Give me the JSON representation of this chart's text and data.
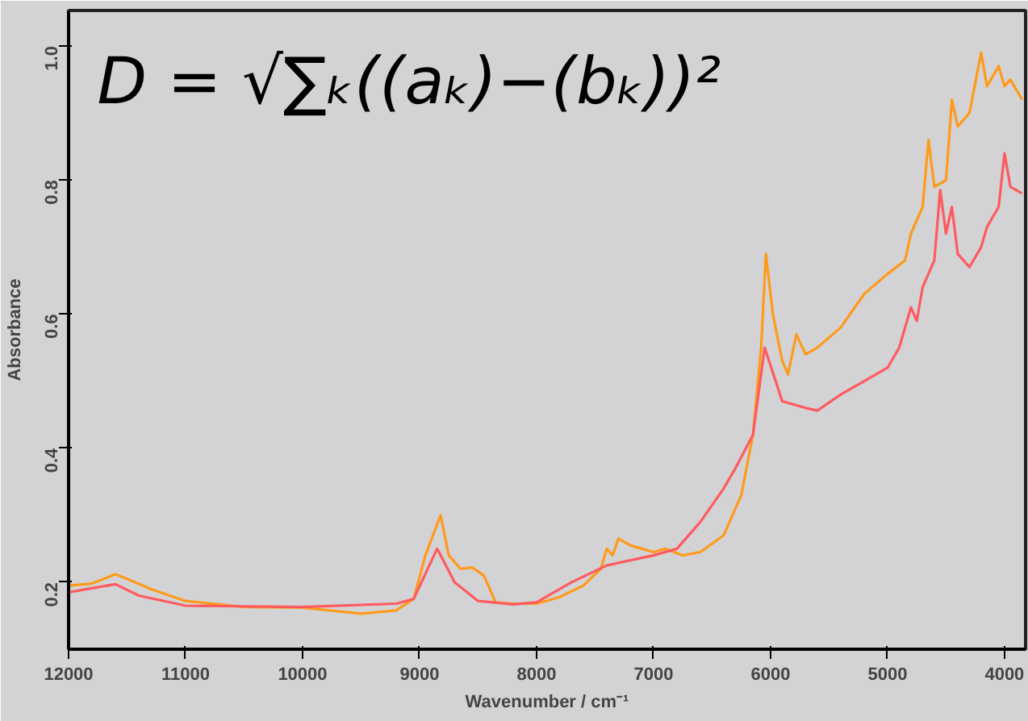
{
  "chart_data": {
    "type": "line",
    "xlabel": "Wavenumber / cm⁻¹",
    "ylabel": "Absorbance",
    "annotations": [
      "D = √∑ₖ((aₖ)−(bₖ))²"
    ],
    "xlim": [
      12000,
      3820
    ],
    "ylim": [
      0.1,
      1.053
    ],
    "xticks": [
      12000,
      11000,
      10000,
      9000,
      8000,
      7000,
      6000,
      5000,
      4000
    ],
    "yticks": [
      0.2,
      0.4,
      0.6,
      0.8,
      {
        "value": 1.0,
        "label": "1.0"
      }
    ],
    "grid": false,
    "marker": "none",
    "line_style": "solid",
    "series": [
      {
        "color": "#ff9a1a",
        "x": [
          12000,
          11800,
          11600,
          11500,
          11300,
          11000,
          10500,
          10000,
          9500,
          9200,
          9050,
          8950,
          8820,
          8750,
          8650,
          8550,
          8450,
          8350,
          8200,
          8000,
          7800,
          7600,
          7450,
          7400,
          7350,
          7300,
          7200,
          7100,
          7000,
          6900,
          6750,
          6600,
          6400,
          6250,
          6150,
          6080,
          6040,
          5980,
          5900,
          5850,
          5780,
          5700,
          5600,
          5400,
          5200,
          5000,
          4850,
          4800,
          4700,
          4650,
          4600,
          4500,
          4450,
          4400,
          4300,
          4200,
          4150,
          4050,
          4000,
          3950,
          3850
        ],
        "values": [
          0.195,
          0.198,
          0.212,
          0.205,
          0.19,
          0.172,
          0.163,
          0.162,
          0.153,
          0.158,
          0.175,
          0.24,
          0.3,
          0.24,
          0.22,
          0.222,
          0.21,
          0.17,
          0.168,
          0.168,
          0.178,
          0.195,
          0.22,
          0.25,
          0.24,
          0.265,
          0.255,
          0.25,
          0.245,
          0.25,
          0.24,
          0.245,
          0.27,
          0.33,
          0.42,
          0.55,
          0.69,
          0.6,
          0.53,
          0.51,
          0.57,
          0.54,
          0.55,
          0.58,
          0.63,
          0.66,
          0.68,
          0.72,
          0.76,
          0.86,
          0.79,
          0.8,
          0.92,
          0.88,
          0.9,
          0.99,
          0.94,
          0.97,
          0.94,
          0.95,
          0.92
        ]
      },
      {
        "color": "#ff5a5f",
        "x": [
          12000,
          11600,
          11400,
          11000,
          10000,
          9200,
          9050,
          8850,
          8700,
          8500,
          8200,
          8000,
          7700,
          7400,
          7000,
          6800,
          6600,
          6400,
          6300,
          6150,
          6050,
          5900,
          5700,
          5600,
          5400,
          5200,
          5000,
          4900,
          4800,
          4750,
          4700,
          4600,
          4550,
          4500,
          4450,
          4400,
          4300,
          4200,
          4150,
          4050,
          4000,
          3950,
          3850
        ],
        "values": [
          0.185,
          0.197,
          0.18,
          0.165,
          0.163,
          0.168,
          0.175,
          0.25,
          0.2,
          0.172,
          0.167,
          0.17,
          0.2,
          0.225,
          0.24,
          0.25,
          0.29,
          0.34,
          0.37,
          0.42,
          0.55,
          0.47,
          0.46,
          0.456,
          0.48,
          0.5,
          0.52,
          0.55,
          0.61,
          0.59,
          0.64,
          0.68,
          0.785,
          0.72,
          0.76,
          0.69,
          0.67,
          0.7,
          0.73,
          0.76,
          0.84,
          0.79,
          0.78
        ]
      }
    ]
  }
}
